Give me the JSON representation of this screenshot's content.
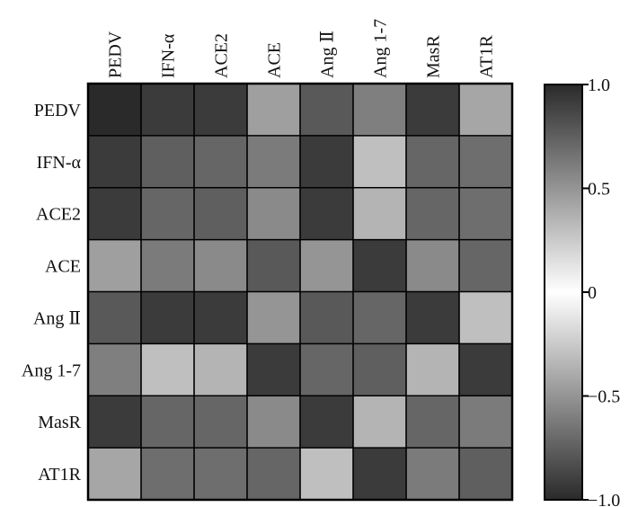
{
  "chart_data": {
    "type": "heatmap",
    "title": "",
    "xlabel": "",
    "ylabel": "",
    "columns": [
      "PEDV",
      "IFN-α",
      "ACE2",
      "ACE",
      "Ang Ⅱ",
      "Ang 1-7",
      "MasR",
      "AT1R"
    ],
    "rows": [
      "PEDV",
      "IFN-α",
      "ACE2",
      "ACE",
      "Ang Ⅱ",
      "Ang 1-7",
      "MasR",
      "AT1R"
    ],
    "values": [
      [
        1.0,
        -0.92,
        -0.92,
        -0.45,
        0.78,
        0.6,
        -0.92,
        -0.42
      ],
      [
        -0.92,
        0.75,
        0.72,
        0.62,
        -0.92,
        -0.3,
        0.72,
        0.68
      ],
      [
        -0.92,
        0.72,
        0.75,
        0.55,
        -0.92,
        -0.35,
        0.72,
        0.68
      ],
      [
        -0.45,
        0.62,
        0.55,
        0.78,
        -0.5,
        -0.92,
        0.55,
        0.72
      ],
      [
        0.78,
        -0.92,
        -0.92,
        -0.5,
        0.78,
        0.72,
        -0.92,
        -0.3
      ],
      [
        0.6,
        -0.3,
        -0.35,
        -0.92,
        0.72,
        0.75,
        -0.35,
        -0.92
      ],
      [
        -0.92,
        0.72,
        0.72,
        0.55,
        -0.92,
        -0.35,
        0.72,
        0.62
      ],
      [
        -0.42,
        0.68,
        0.68,
        0.72,
        -0.3,
        -0.92,
        0.62,
        0.75
      ]
    ],
    "colorbar": {
      "min": -1.0,
      "max": 1.0,
      "ticks": [
        1.0,
        0.5,
        0,
        -0.5,
        -1.0
      ],
      "tick_labels": [
        "1.0",
        "0.5",
        "0",
        "−0.5",
        "−1.0"
      ],
      "color_at_extremes": "#2a2a2a",
      "color_at_zero": "#ffffff"
    },
    "grid": true,
    "legend": "right"
  }
}
